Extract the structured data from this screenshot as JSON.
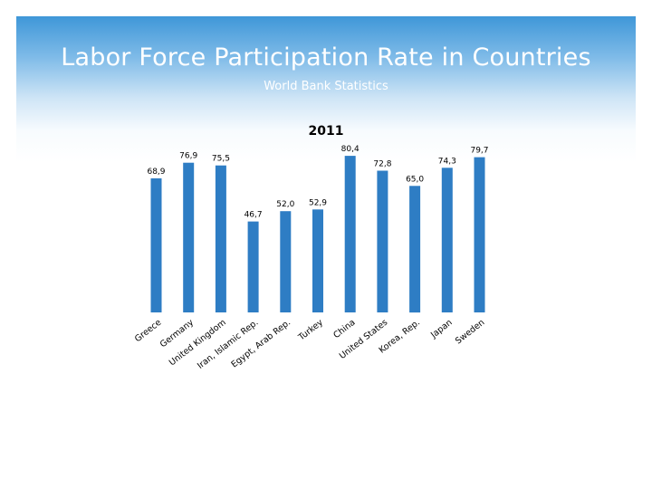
{
  "slide": {
    "title": "Labor Force Participation Rate in Countries",
    "subtitle": "World Bank Statistics"
  },
  "chart_data": {
    "type": "bar",
    "title": "2011",
    "categories": [
      "Greece",
      "Germany",
      "United Kingdom",
      "Iran, Islamic Rep.",
      "Egypt, Arab Rep.",
      "Turkey",
      "China",
      "United States",
      "Korea, Rep.",
      "Japan",
      "Sweden"
    ],
    "values": [
      68.9,
      76.9,
      75.5,
      46.7,
      52.0,
      52.9,
      80.4,
      72.8,
      65.0,
      74.3,
      79.7
    ],
    "data_labels": [
      "68,9",
      "76,9",
      "75,5",
      "46,7",
      "52,0",
      "52,9",
      "80,4",
      "72,8",
      "65,0",
      "74,3",
      "79,7"
    ],
    "xlabel": "",
    "ylabel": "",
    "ylim": [
      0,
      85
    ],
    "grid": false,
    "legend": "none",
    "bar_color": "#2e7dc4",
    "label_color": "#000000"
  }
}
